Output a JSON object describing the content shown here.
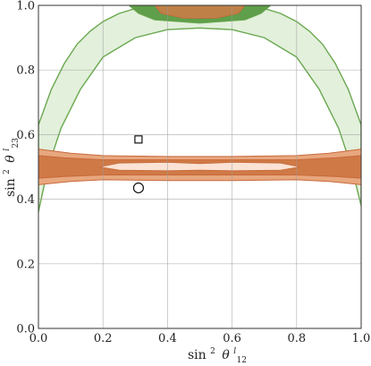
{
  "chart_data": {
    "type": "contour",
    "title": "",
    "xlabel": {
      "prefix": "sin",
      "sup": "2",
      "theta": "θ",
      "sub": "12",
      "supl": "l"
    },
    "ylabel": {
      "prefix": "sin",
      "sup": "2",
      "theta": "θ",
      "sub": "23",
      "supl": "l"
    },
    "xlim": [
      0.0,
      1.0
    ],
    "ylim": [
      0.0,
      1.0
    ],
    "xticks": [
      0.0,
      0.2,
      0.4,
      0.6,
      0.8,
      1.0
    ],
    "yticks": [
      0.0,
      0.2,
      0.4,
      0.6,
      0.8,
      1.0
    ],
    "xtick_labels": [
      "0.0",
      "0.2",
      "0.4",
      "0.6",
      "0.8",
      "1.0"
    ],
    "ytick_labels": [
      "0.0",
      "0.2",
      "0.4",
      "0.6",
      "0.8",
      "1.0"
    ],
    "grid": true,
    "colors": {
      "green_fill": "#e3f0dc",
      "green_line": "#6aa84f",
      "green_dark": "#5f9e4a",
      "orange_outer": "#e8a77e",
      "orange_mid": "#cf7a46",
      "orange_inner": "#fbe3d5",
      "orange_line": "#c8693a"
    },
    "regions": [
      {
        "name": "green-arch",
        "outer_upper": [
          [
            0.0,
            0.63
          ],
          [
            0.04,
            0.74
          ],
          [
            0.08,
            0.82
          ],
          [
            0.12,
            0.88
          ],
          [
            0.16,
            0.92
          ],
          [
            0.2,
            0.95
          ],
          [
            0.25,
            0.975
          ],
          [
            0.3,
            0.99
          ],
          [
            0.35,
            1.0
          ],
          [
            0.65,
            1.0
          ],
          [
            0.7,
            0.99
          ],
          [
            0.75,
            0.975
          ],
          [
            0.8,
            0.95
          ],
          [
            0.84,
            0.92
          ],
          [
            0.88,
            0.88
          ],
          [
            0.92,
            0.82
          ],
          [
            0.96,
            0.74
          ],
          [
            1.0,
            0.63
          ]
        ],
        "inner_lower": [
          [
            1.0,
            0.38
          ],
          [
            0.97,
            0.5
          ],
          [
            0.93,
            0.62
          ],
          [
            0.87,
            0.74
          ],
          [
            0.8,
            0.84
          ],
          [
            0.7,
            0.9
          ],
          [
            0.6,
            0.925
          ],
          [
            0.5,
            0.93
          ],
          [
            0.4,
            0.925
          ],
          [
            0.3,
            0.9
          ],
          [
            0.2,
            0.84
          ],
          [
            0.13,
            0.74
          ],
          [
            0.07,
            0.62
          ],
          [
            0.03,
            0.5
          ],
          [
            0.0,
            0.36
          ]
        ]
      },
      {
        "name": "green-top-patch",
        "polygon": [
          [
            0.28,
            1.0
          ],
          [
            0.31,
            0.975
          ],
          [
            0.36,
            0.955
          ],
          [
            0.5,
            0.945
          ],
          [
            0.64,
            0.955
          ],
          [
            0.69,
            0.975
          ],
          [
            0.72,
            1.0
          ]
        ]
      },
      {
        "name": "orange-top-patch",
        "polygon": [
          [
            0.36,
            1.0
          ],
          [
            0.38,
            0.975
          ],
          [
            0.45,
            0.96
          ],
          [
            0.55,
            0.96
          ],
          [
            0.62,
            0.975
          ],
          [
            0.64,
            1.0
          ]
        ]
      },
      {
        "name": "orange-band-outer",
        "polygon": [
          [
            0.0,
            0.445
          ],
          [
            0.1,
            0.455
          ],
          [
            0.2,
            0.46
          ],
          [
            0.4,
            0.458
          ],
          [
            0.6,
            0.458
          ],
          [
            0.8,
            0.46
          ],
          [
            0.9,
            0.455
          ],
          [
            1.0,
            0.445
          ],
          [
            1.0,
            0.555
          ],
          [
            0.9,
            0.542
          ],
          [
            0.8,
            0.535
          ],
          [
            0.6,
            0.532
          ],
          [
            0.4,
            0.532
          ],
          [
            0.2,
            0.535
          ],
          [
            0.1,
            0.542
          ],
          [
            0.0,
            0.555
          ]
        ]
      },
      {
        "name": "orange-band-mid",
        "polygon": [
          [
            0.0,
            0.465
          ],
          [
            0.08,
            0.47
          ],
          [
            0.2,
            0.475
          ],
          [
            0.5,
            0.475
          ],
          [
            0.8,
            0.475
          ],
          [
            0.92,
            0.47
          ],
          [
            1.0,
            0.465
          ],
          [
            1.0,
            0.535
          ],
          [
            0.92,
            0.528
          ],
          [
            0.8,
            0.522
          ],
          [
            0.5,
            0.522
          ],
          [
            0.2,
            0.522
          ],
          [
            0.08,
            0.528
          ],
          [
            0.0,
            0.535
          ]
        ]
      },
      {
        "name": "orange-band-inner",
        "polygon": [
          [
            0.19,
            0.5
          ],
          [
            0.25,
            0.49
          ],
          [
            0.4,
            0.488
          ],
          [
            0.5,
            0.49
          ],
          [
            0.6,
            0.488
          ],
          [
            0.75,
            0.49
          ],
          [
            0.81,
            0.5
          ],
          [
            0.75,
            0.512
          ],
          [
            0.6,
            0.514
          ],
          [
            0.5,
            0.51
          ],
          [
            0.4,
            0.514
          ],
          [
            0.25,
            0.512
          ]
        ]
      }
    ],
    "markers": [
      {
        "name": "square-marker",
        "shape": "square",
        "x": 0.31,
        "y": 0.585
      },
      {
        "name": "circle-marker",
        "shape": "circle",
        "x": 0.31,
        "y": 0.435
      }
    ]
  }
}
